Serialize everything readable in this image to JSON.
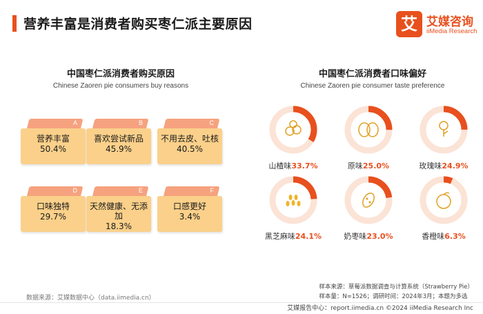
{
  "header": {
    "title": "营养丰富是消费者购买枣仁派主要原因",
    "logo_glyph": "艾",
    "logo_cn": "艾媒咨询",
    "logo_en": "iiMedia Research"
  },
  "colors": {
    "accent": "#e8501e",
    "card": "#fbd08a",
    "flap": "#f6a27f",
    "ring_track": "#fbe3d6"
  },
  "chart_data": [
    {
      "type": "table",
      "title": "中国枣仁派消费者购买原因",
      "subtitle": "Chinese Zaoren pie consumers buy reasons",
      "unit": "%",
      "categories": [
        "营养丰富",
        "喜欢尝试新品",
        "不用去皮、吐核",
        "口味独特",
        "天然健康、无添加",
        "口感更好"
      ],
      "letters": [
        "A",
        "B",
        "C",
        "D",
        "E",
        "F"
      ],
      "values": [
        50.4,
        45.9,
        40.5,
        29.7,
        18.3,
        3.4
      ],
      "value_labels": [
        "50.4%",
        "45.9%",
        "40.5%",
        "29.7%",
        "18.3%",
        "3.4%"
      ]
    },
    {
      "type": "pie",
      "title": "中国枣仁派消费者口味偏好",
      "subtitle": "Chinese Zaoren pie consumer taste preference",
      "unit": "%",
      "categories": [
        "山楂味",
        "原味",
        "玫瑰味",
        "黑芝麻味",
        "奶枣味",
        "香橙味"
      ],
      "values": [
        33.7,
        25.0,
        24.9,
        24.1,
        23.0,
        6.3
      ],
      "value_labels": [
        "33.7%",
        "25.0%",
        "24.9%",
        "24.1%",
        "23.0%",
        "6.3%"
      ],
      "icons": [
        "hawthorn-icon",
        "plain-pie-icon",
        "rose-icon",
        "black-sesame-icon",
        "milk-date-icon",
        "orange-icon"
      ]
    }
  ],
  "source": "数据来源：艾媒数据中心（data.iimedia.cn）",
  "notes": {
    "line1": "样本来源：草莓派数据调查与计算系统（Strawberry Pie）",
    "line2": "样本量：N=1526；调研时间：2024年3月；本题为多选"
  },
  "footer": "艾媒报告中心：report.iimedia.cn  ©2024  iiMedia Research Inc"
}
